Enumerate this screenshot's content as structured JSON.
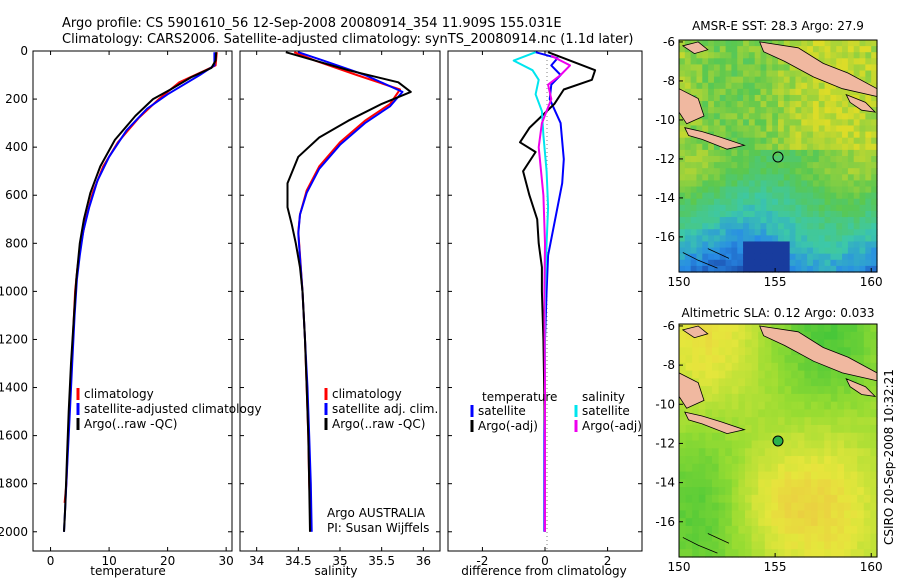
{
  "header": {
    "line1": "Argo profile: CS 5901610_56 12-Sep-2008 20080914_354 11.909S 155.031E",
    "line2": "Climatology: CARS2006. Satellite-adjusted climatology: synTS_20080914.nc (1.1d later)"
  },
  "side_caption": "CSIRO 20-Sep-2008 10:32:21",
  "colors": {
    "clim": "#ff0000",
    "sat": "#0000ff",
    "argo": "#000000",
    "sat_sal": "#00e5ee",
    "argo_sal": "#ee00ee",
    "dotted": "#808080"
  },
  "chart_data": [
    {
      "type": "line",
      "xlabel": "temperature",
      "ylabel": "",
      "xlim": [
        -3,
        31
      ],
      "ylim": [
        2080,
        0
      ],
      "x_ticks": [
        "0",
        "10",
        "20",
        "30"
      ],
      "x_tick_values": [
        0,
        10,
        20,
        30
      ],
      "y_ticks": [
        "0",
        "200",
        "400",
        "600",
        "800",
        "1000",
        "1200",
        "1400",
        "1600",
        "1800",
        "2000"
      ],
      "y_tick_values": [
        0,
        200,
        400,
        600,
        800,
        1000,
        1200,
        1400,
        1600,
        1800,
        2000
      ],
      "legend": [
        "climatology",
        "satellite-adjusted climatology",
        "Argo(..raw -QC)"
      ],
      "series": [
        {
          "name": "climatology",
          "color": "red",
          "points": [
            [
              28.4,
              5
            ],
            [
              28.2,
              60
            ],
            [
              26.5,
              80
            ],
            [
              22,
              130
            ],
            [
              18.5,
              200
            ],
            [
              15,
              280
            ],
            [
              11.5,
              380
            ],
            [
              9,
              480
            ],
            [
              7.2,
              590
            ],
            [
              6.0,
              700
            ],
            [
              5.2,
              800
            ],
            [
              4.6,
              900
            ],
            [
              4.2,
              1000
            ],
            [
              3.8,
              1200
            ],
            [
              3.4,
              1400
            ],
            [
              3.0,
              1600
            ],
            [
              2.7,
              1800
            ],
            [
              2.4,
              1880
            ]
          ]
        },
        {
          "name": "satellite-adjusted climatology",
          "color": "blue",
          "points": [
            [
              28.0,
              5
            ],
            [
              28.0,
              60
            ],
            [
              25.5,
              100
            ],
            [
              20,
              180
            ],
            [
              16.5,
              240
            ],
            [
              13,
              330
            ],
            [
              10,
              440
            ],
            [
              8,
              540
            ],
            [
              6.6,
              650
            ],
            [
              5.6,
              750
            ],
            [
              5.0,
              850
            ],
            [
              4.5,
              950
            ],
            [
              4.1,
              1100
            ],
            [
              3.7,
              1300
            ],
            [
              3.3,
              1500
            ],
            [
              2.9,
              1700
            ],
            [
              2.5,
              1900
            ],
            [
              2.3,
              2000
            ]
          ]
        },
        {
          "name": "Argo(..raw -QC)",
          "color": "black",
          "points": [
            [
              28.3,
              5
            ],
            [
              28.2,
              40
            ],
            [
              27.5,
              70
            ],
            [
              24,
              110
            ],
            [
              20.5,
              160
            ],
            [
              17.5,
              200
            ],
            [
              14.5,
              270
            ],
            [
              11,
              370
            ],
            [
              8.5,
              480
            ],
            [
              6.8,
              590
            ],
            [
              5.7,
              700
            ],
            [
              5.0,
              800
            ],
            [
              4.4,
              950
            ],
            [
              4.0,
              1100
            ],
            [
              3.5,
              1300
            ],
            [
              3.1,
              1500
            ],
            [
              2.8,
              1700
            ],
            [
              2.5,
              1900
            ],
            [
              2.3,
              2000
            ]
          ]
        }
      ]
    },
    {
      "type": "line",
      "xlabel": "salinity",
      "xlim": [
        33.8,
        36.2
      ],
      "ylim": [
        2080,
        0
      ],
      "x_ticks": [
        "34",
        "34.5",
        "35",
        "35.5",
        "36"
      ],
      "x_tick_values": [
        34,
        34.5,
        35,
        35.5,
        36
      ],
      "legend": [
        "climatology",
        "satellite adj. clim.",
        "Argo(..raw -QC)"
      ],
      "annotation": [
        "Argo AUSTRALIA",
        "PI: Susan Wijffels"
      ],
      "series": [
        {
          "name": "climatology",
          "color": "red",
          "points": [
            [
              34.45,
              5
            ],
            [
              34.7,
              40
            ],
            [
              35.2,
              100
            ],
            [
              35.72,
              160
            ],
            [
              35.6,
              220
            ],
            [
              35.3,
              290
            ],
            [
              35.0,
              380
            ],
            [
              34.75,
              480
            ],
            [
              34.6,
              580
            ],
            [
              34.52,
              680
            ],
            [
              34.5,
              750
            ],
            [
              34.52,
              850
            ],
            [
              34.55,
              1000
            ],
            [
              34.58,
              1200
            ],
            [
              34.6,
              1400
            ],
            [
              34.62,
              1600
            ],
            [
              34.63,
              1800
            ],
            [
              34.64,
              1880
            ]
          ]
        },
        {
          "name": "satellite adj. clim.",
          "color": "blue",
          "points": [
            [
              34.5,
              5
            ],
            [
              34.8,
              40
            ],
            [
              35.3,
              100
            ],
            [
              35.75,
              170
            ],
            [
              35.6,
              230
            ],
            [
              35.3,
              300
            ],
            [
              35.0,
              390
            ],
            [
              34.75,
              490
            ],
            [
              34.6,
              590
            ],
            [
              34.52,
              680
            ],
            [
              34.5,
              760
            ],
            [
              34.52,
              860
            ],
            [
              34.55,
              1000
            ],
            [
              34.58,
              1200
            ],
            [
              34.61,
              1400
            ],
            [
              34.63,
              1600
            ],
            [
              34.65,
              1800
            ],
            [
              34.66,
              2000
            ]
          ]
        },
        {
          "name": "Argo(..raw -QC)",
          "color": "black",
          "points": [
            [
              34.35,
              5
            ],
            [
              34.6,
              30
            ],
            [
              35.1,
              80
            ],
            [
              35.7,
              130
            ],
            [
              35.85,
              170
            ],
            [
              35.5,
              220
            ],
            [
              35.1,
              290
            ],
            [
              34.75,
              360
            ],
            [
              34.5,
              440
            ],
            [
              34.37,
              550
            ],
            [
              34.37,
              650
            ],
            [
              34.42,
              720
            ],
            [
              34.47,
              800
            ],
            [
              34.52,
              900
            ],
            [
              34.55,
              1000
            ],
            [
              34.58,
              1200
            ],
            [
              34.6,
              1400
            ],
            [
              34.62,
              1600
            ],
            [
              34.63,
              1800
            ],
            [
              34.64,
              2000
            ]
          ]
        }
      ]
    },
    {
      "type": "line",
      "xlabel": "difference from climatology",
      "xlim": [
        -3.1,
        3.1
      ],
      "ylim": [
        2080,
        0
      ],
      "x_ticks": [
        "-2",
        "0",
        "2"
      ],
      "x_tick_values": [
        -2,
        0,
        2
      ],
      "legend": {
        "temperature_header": "temperature",
        "salinity_header": "salinity",
        "temperature": [
          "satellite",
          "Argo(-adj)"
        ],
        "salinity": [
          "satellite",
          "Argo(-adj)"
        ]
      },
      "series": [
        {
          "name": "temperature satellite",
          "color": "blue",
          "points": [
            [
              -0.3,
              5
            ],
            [
              0.4,
              30
            ],
            [
              0.2,
              60
            ],
            [
              0.5,
              100
            ],
            [
              0.2,
              140
            ],
            [
              0.15,
              200
            ],
            [
              0.5,
              300
            ],
            [
              0.6,
              450
            ],
            [
              0.55,
              550
            ],
            [
              0.4,
              650
            ],
            [
              0.25,
              750
            ],
            [
              0.1,
              850
            ],
            [
              0.05,
              1000
            ],
            [
              0.0,
              1200
            ],
            [
              -0.02,
              1600
            ],
            [
              -0.02,
              2000
            ]
          ]
        },
        {
          "name": "temperature Argo(-adj)",
          "color": "black",
          "points": [
            [
              0.1,
              5
            ],
            [
              0.6,
              30
            ],
            [
              1.6,
              80
            ],
            [
              1.5,
              120
            ],
            [
              0.6,
              160
            ],
            [
              0.3,
              220
            ],
            [
              -0.5,
              320
            ],
            [
              -0.8,
              380
            ],
            [
              -0.3,
              420
            ],
            [
              -0.7,
              500
            ],
            [
              -0.5,
              600
            ],
            [
              -0.25,
              700
            ],
            [
              -0.2,
              800
            ],
            [
              -0.1,
              900
            ],
            [
              -0.1,
              1000
            ],
            [
              -0.05,
              1200
            ],
            [
              0.0,
              1600
            ],
            [
              0.0,
              2000
            ]
          ]
        },
        {
          "name": "salinity satellite",
          "color": "cyan",
          "points": [
            [
              -0.3,
              5
            ],
            [
              -1.0,
              40
            ],
            [
              -0.4,
              80
            ],
            [
              -0.2,
              120
            ],
            [
              -0.3,
              180
            ],
            [
              -0.1,
              250
            ],
            [
              -0.05,
              350
            ],
            [
              0.05,
              500
            ],
            [
              0.1,
              650
            ],
            [
              0.05,
              800
            ],
            [
              0.0,
              1000
            ],
            [
              0.0,
              1400
            ],
            [
              0.0,
              2000
            ]
          ]
        },
        {
          "name": "salinity Argo(-adj)",
          "color": "magenta",
          "points": [
            [
              0.2,
              20
            ],
            [
              0.8,
              60
            ],
            [
              0.5,
              100
            ],
            [
              0.1,
              140
            ],
            [
              0.2,
              200
            ],
            [
              -0.1,
              300
            ],
            [
              -0.2,
              400
            ],
            [
              -0.05,
              600
            ],
            [
              0.0,
              800
            ],
            [
              -0.02,
              1000
            ],
            [
              0.0,
              1400
            ],
            [
              0.0,
              2000
            ]
          ]
        }
      ]
    },
    {
      "type": "heatmap",
      "title": "AMSR-E SST: 28.3 Argo: 27.9",
      "x_ticks": [
        "150",
        "155",
        "160"
      ],
      "x_tick_values": [
        150,
        155,
        160
      ],
      "y_ticks": [
        "-6",
        "-8",
        "-10",
        "-12",
        "-14",
        "-16"
      ],
      "y_tick_values": [
        -6,
        -8,
        -10,
        -12,
        -14,
        -16
      ],
      "xlim": [
        150,
        160.3
      ],
      "ylim": [
        -17.8,
        -5.9
      ],
      "marker": [
        155.03,
        -11.91
      ]
    },
    {
      "type": "heatmap",
      "title": "Altimetric SLA: 0.12 Argo: 0.033",
      "x_ticks": [
        "150",
        "155",
        "160"
      ],
      "x_tick_values": [
        150,
        155,
        160
      ],
      "y_ticks": [
        "-6",
        "-8",
        "-10",
        "-12",
        "-14",
        "-16"
      ],
      "y_tick_values": [
        -6,
        -8,
        -10,
        -12,
        -14,
        -16
      ],
      "xlim": [
        150,
        160.3
      ],
      "ylim": [
        -17.8,
        -5.9
      ],
      "marker": [
        155.03,
        -11.91
      ]
    }
  ]
}
